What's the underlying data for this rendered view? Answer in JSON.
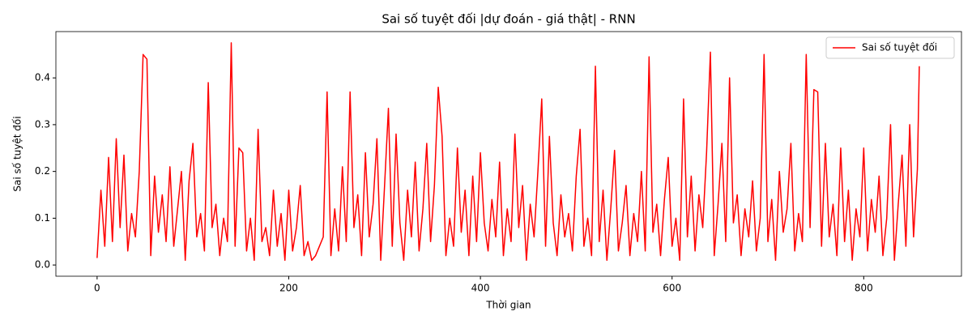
{
  "chart_data": {
    "type": "line",
    "title": "Sai số tuyệt đối |dự đoán - giá thật| - RNN",
    "x_label": "Thời gian",
    "y_label": "Sai số tuyệt đối",
    "legend": "upper right",
    "grid": false,
    "xlim": [
      -43,
      902
    ],
    "ylim": [
      -0.024,
      0.499
    ],
    "xticks": [
      0,
      200,
      400,
      600,
      800
    ],
    "yticks": [
      {
        "value": 0,
        "label": "0.0"
      },
      0.1,
      0.2,
      0.3,
      0.4
    ],
    "x": [
      0,
      4,
      8,
      12,
      16,
      20,
      24,
      28,
      32,
      36,
      40,
      44,
      48,
      52,
      56,
      60,
      64,
      68,
      72,
      76,
      80,
      84,
      88,
      92,
      96,
      100,
      104,
      108,
      112,
      116,
      120,
      124,
      128,
      132,
      136,
      140,
      144,
      148,
      152,
      156,
      160,
      164,
      168,
      172,
      176,
      180,
      184,
      188,
      192,
      196,
      200,
      204,
      208,
      212,
      216,
      220,
      224,
      228,
      232,
      236,
      240,
      244,
      248,
      252,
      256,
      260,
      264,
      268,
      272,
      276,
      280,
      284,
      288,
      292,
      296,
      300,
      304,
      308,
      312,
      316,
      320,
      324,
      328,
      332,
      336,
      340,
      344,
      348,
      352,
      356,
      360,
      364,
      368,
      372,
      376,
      380,
      384,
      388,
      392,
      396,
      400,
      404,
      408,
      412,
      416,
      420,
      424,
      428,
      432,
      436,
      440,
      444,
      448,
      452,
      456,
      460,
      464,
      468,
      472,
      476,
      480,
      484,
      488,
      492,
      496,
      500,
      504,
      508,
      512,
      516,
      520,
      524,
      528,
      532,
      536,
      540,
      544,
      548,
      552,
      556,
      560,
      564,
      568,
      572,
      576,
      580,
      584,
      588,
      592,
      596,
      600,
      604,
      608,
      612,
      616,
      620,
      624,
      628,
      632,
      636,
      640,
      644,
      648,
      652,
      656,
      660,
      664,
      668,
      672,
      676,
      680,
      684,
      688,
      692,
      696,
      700,
      704,
      708,
      712,
      716,
      720,
      724,
      728,
      732,
      736,
      740,
      744,
      748,
      752,
      756,
      760,
      764,
      768,
      772,
      776,
      780,
      784,
      788,
      792,
      796,
      800,
      804,
      808,
      812,
      816,
      820,
      824,
      828,
      832,
      836,
      840,
      844,
      848,
      852,
      856,
      858
    ],
    "series": [
      {
        "name": "Sai số tuyệt đối",
        "color": "#ff0000",
        "values": [
          0.015,
          0.16,
          0.04,
          0.23,
          0.05,
          0.27,
          0.08,
          0.235,
          0.03,
          0.11,
          0.06,
          0.2,
          0.45,
          0.44,
          0.02,
          0.19,
          0.07,
          0.15,
          0.05,
          0.21,
          0.04,
          0.12,
          0.2,
          0.01,
          0.18,
          0.26,
          0.06,
          0.11,
          0.03,
          0.39,
          0.08,
          0.13,
          0.02,
          0.1,
          0.05,
          0.475,
          0.04,
          0.25,
          0.24,
          0.03,
          0.1,
          0.01,
          0.29,
          0.05,
          0.08,
          0.02,
          0.16,
          0.04,
          0.11,
          0.01,
          0.16,
          0.03,
          0.08,
          0.17,
          0.02,
          0.05,
          0.01,
          0.02,
          0.04,
          0.06,
          0.37,
          0.02,
          0.12,
          0.03,
          0.21,
          0.05,
          0.37,
          0.08,
          0.15,
          0.02,
          0.24,
          0.06,
          0.13,
          0.27,
          0.01,
          0.17,
          0.335,
          0.04,
          0.28,
          0.09,
          0.01,
          0.16,
          0.06,
          0.22,
          0.03,
          0.12,
          0.26,
          0.05,
          0.17,
          0.38,
          0.275,
          0.02,
          0.1,
          0.04,
          0.25,
          0.07,
          0.16,
          0.02,
          0.19,
          0.05,
          0.24,
          0.09,
          0.03,
          0.14,
          0.06,
          0.22,
          0.02,
          0.12,
          0.05,
          0.28,
          0.08,
          0.17,
          0.01,
          0.13,
          0.06,
          0.2,
          0.355,
          0.04,
          0.275,
          0.09,
          0.02,
          0.15,
          0.06,
          0.11,
          0.03,
          0.19,
          0.29,
          0.04,
          0.1,
          0.02,
          0.425,
          0.05,
          0.16,
          0.01,
          0.12,
          0.245,
          0.03,
          0.09,
          0.17,
          0.02,
          0.11,
          0.05,
          0.2,
          0.03,
          0.445,
          0.07,
          0.13,
          0.02,
          0.14,
          0.23,
          0.04,
          0.1,
          0.01,
          0.355,
          0.06,
          0.19,
          0.03,
          0.15,
          0.08,
          0.24,
          0.455,
          0.02,
          0.13,
          0.26,
          0.05,
          0.4,
          0.09,
          0.15,
          0.02,
          0.12,
          0.06,
          0.18,
          0.03,
          0.1,
          0.45,
          0.05,
          0.14,
          0.01,
          0.2,
          0.07,
          0.12,
          0.26,
          0.03,
          0.11,
          0.05,
          0.45,
          0.08,
          0.375,
          0.37,
          0.04,
          0.26,
          0.06,
          0.13,
          0.02,
          0.25,
          0.05,
          0.16,
          0.01,
          0.12,
          0.06,
          0.25,
          0.03,
          0.14,
          0.07,
          0.19,
          0.02,
          0.1,
          0.3,
          0.01,
          0.13,
          0.235,
          0.04,
          0.3,
          0.06,
          0.205,
          0.425
        ]
      }
    ]
  }
}
